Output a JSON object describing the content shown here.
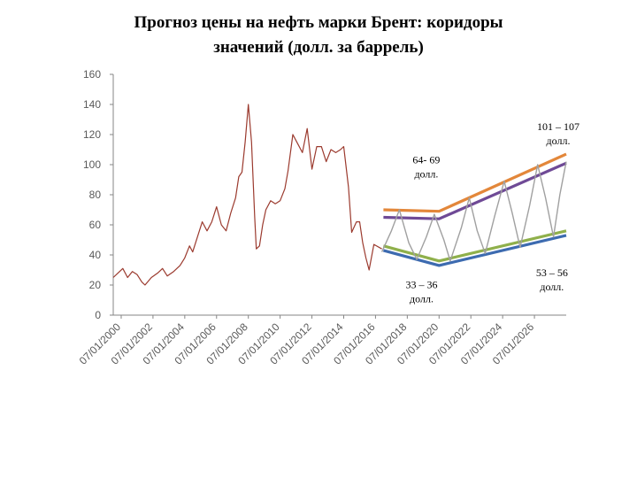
{
  "page": {
    "title_line1": "Прогноз цены на нефть марки Брент: коридоры",
    "title_line2": "значений (долл. за баррель)"
  },
  "chart_data": {
    "type": "line",
    "title": "Прогноз цены на нефть марки Брент: коридоры значений (долл. за баррель)",
    "xlabel": "",
    "ylabel": "",
    "ylim": [
      0,
      160
    ],
    "yticks": [
      0,
      20,
      40,
      60,
      80,
      100,
      120,
      140,
      160
    ],
    "xlim": [
      2000.0,
      2028.5
    ],
    "xticks": [
      {
        "label": "07/01/2000",
        "x": 2000.5
      },
      {
        "label": "07/01/2002",
        "x": 2002.5
      },
      {
        "label": "07/01/2004",
        "x": 2004.5
      },
      {
        "label": "07/01/2006",
        "x": 2006.5
      },
      {
        "label": "07/01/2008",
        "x": 2008.5
      },
      {
        "label": "07/01/2010",
        "x": 2010.5
      },
      {
        "label": "07/01/2012",
        "x": 2012.5
      },
      {
        "label": "07/01/2014",
        "x": 2014.5
      },
      {
        "label": "07/01/2016",
        "x": 2016.5
      },
      {
        "label": "07/01/2018",
        "x": 2018.5
      },
      {
        "label": "07/01/2020",
        "x": 2020.5
      },
      {
        "label": "07/01/2022",
        "x": 2022.5
      },
      {
        "label": "07/01/2024",
        "x": 2024.5
      },
      {
        "label": "07/01/2026",
        "x": 2026.5
      }
    ],
    "grid": false,
    "series": [
      {
        "key": "historical",
        "color": "#9B3A2E",
        "points": [
          [
            2000.0,
            25
          ],
          [
            2000.3,
            28
          ],
          [
            2000.6,
            31
          ],
          [
            2000.9,
            25
          ],
          [
            2001.2,
            29
          ],
          [
            2001.5,
            27
          ],
          [
            2001.8,
            22
          ],
          [
            2002.0,
            20
          ],
          [
            2002.4,
            25
          ],
          [
            2002.8,
            28
          ],
          [
            2003.1,
            31
          ],
          [
            2003.4,
            26
          ],
          [
            2003.8,
            29
          ],
          [
            2004.2,
            33
          ],
          [
            2004.5,
            38
          ],
          [
            2004.8,
            46
          ],
          [
            2005.0,
            42
          ],
          [
            2005.3,
            52
          ],
          [
            2005.6,
            62
          ],
          [
            2005.9,
            56
          ],
          [
            2006.2,
            62
          ],
          [
            2006.5,
            72
          ],
          [
            2006.8,
            60
          ],
          [
            2007.1,
            56
          ],
          [
            2007.4,
            68
          ],
          [
            2007.7,
            78
          ],
          [
            2007.9,
            92
          ],
          [
            2008.1,
            95
          ],
          [
            2008.3,
            115
          ],
          [
            2008.5,
            140
          ],
          [
            2008.7,
            115
          ],
          [
            2008.9,
            65
          ],
          [
            2009.0,
            44
          ],
          [
            2009.2,
            46
          ],
          [
            2009.4,
            60
          ],
          [
            2009.6,
            70
          ],
          [
            2009.9,
            76
          ],
          [
            2010.2,
            74
          ],
          [
            2010.5,
            76
          ],
          [
            2010.8,
            84
          ],
          [
            2011.0,
            96
          ],
          [
            2011.3,
            120
          ],
          [
            2011.6,
            114
          ],
          [
            2011.9,
            108
          ],
          [
            2012.2,
            124
          ],
          [
            2012.5,
            97
          ],
          [
            2012.8,
            112
          ],
          [
            2013.1,
            112
          ],
          [
            2013.4,
            102
          ],
          [
            2013.7,
            110
          ],
          [
            2014.0,
            108
          ],
          [
            2014.3,
            110
          ],
          [
            2014.5,
            112
          ],
          [
            2014.8,
            85
          ],
          [
            2015.0,
            55
          ],
          [
            2015.3,
            62
          ],
          [
            2015.5,
            62
          ],
          [
            2015.7,
            48
          ],
          [
            2015.9,
            38
          ],
          [
            2016.1,
            30
          ],
          [
            2016.4,
            47
          ],
          [
            2016.9,
            44
          ]
        ]
      },
      {
        "key": "upper-high",
        "color": "#E3873A",
        "points": [
          [
            2017.0,
            70
          ],
          [
            2020.5,
            69
          ],
          [
            2028.5,
            107
          ]
        ]
      },
      {
        "key": "upper-low",
        "color": "#6F4A96",
        "points": [
          [
            2017.0,
            65
          ],
          [
            2020.5,
            64
          ],
          [
            2028.5,
            101
          ]
        ]
      },
      {
        "key": "lower-high",
        "color": "#8FB04B",
        "points": [
          [
            2017.0,
            46
          ],
          [
            2020.5,
            36
          ],
          [
            2028.5,
            56
          ]
        ]
      },
      {
        "key": "lower-low",
        "color": "#3D6BB0",
        "points": [
          [
            2017.0,
            43
          ],
          [
            2020.5,
            33
          ],
          [
            2028.5,
            53
          ]
        ]
      },
      {
        "key": "oscillation",
        "color": "#A0A0A0",
        "points": [
          [
            2016.9,
            42
          ],
          [
            2017.5,
            56
          ],
          [
            2018.0,
            70
          ],
          [
            2018.6,
            48
          ],
          [
            2019.1,
            37
          ],
          [
            2019.7,
            52
          ],
          [
            2020.2,
            67
          ],
          [
            2020.8,
            50
          ],
          [
            2021.2,
            36
          ],
          [
            2021.9,
            58
          ],
          [
            2022.4,
            78
          ],
          [
            2022.9,
            56
          ],
          [
            2023.4,
            41
          ],
          [
            2024.0,
            66
          ],
          [
            2024.6,
            89
          ],
          [
            2025.1,
            68
          ],
          [
            2025.6,
            45
          ],
          [
            2026.2,
            73
          ],
          [
            2026.7,
            100
          ],
          [
            2027.2,
            78
          ],
          [
            2027.7,
            52
          ],
          [
            2028.1,
            80
          ],
          [
            2028.5,
            102
          ]
        ]
      }
    ],
    "annotations": [
      {
        "key": "ann-upper-start",
        "line1": "64- 69",
        "line2": "долл.",
        "x": 2019.7,
        "y": 101
      },
      {
        "key": "ann-lower-start",
        "line1": "33 – 36",
        "line2": "долл.",
        "x": 2019.4,
        "y": 18
      },
      {
        "key": "ann-upper-end",
        "line1": "101 – 107",
        "line2": "долл.",
        "x": 2028.0,
        "y": 123
      },
      {
        "key": "ann-lower-end",
        "line1": "53 – 56",
        "line2": "долл.",
        "x": 2027.6,
        "y": 26
      }
    ]
  }
}
